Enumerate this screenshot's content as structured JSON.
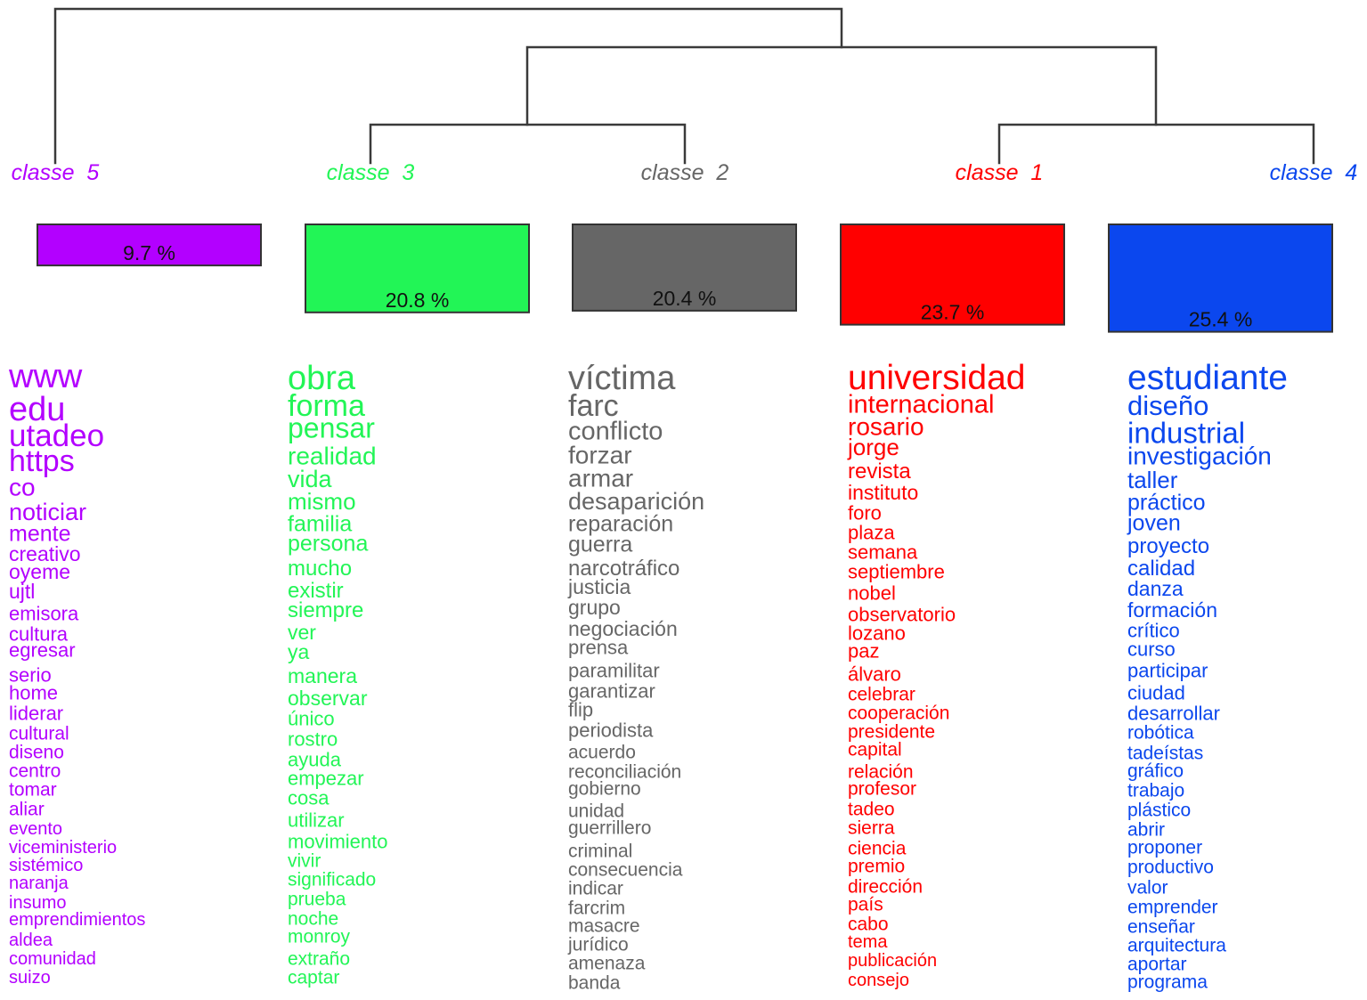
{
  "classes": [
    {
      "label": "classe  5",
      "percent": 9.7,
      "percent_label": "9.7 %",
      "color": "#b300ff",
      "words": [
        "www",
        "edu",
        "utadeo",
        "https",
        "co",
        "noticiar",
        "mente",
        "creativo",
        "oyeme",
        "ujtl",
        "emisora",
        "cultura",
        "egresar",
        "serio",
        "home",
        "liderar",
        "cultural",
        "diseno",
        "centro",
        "tomar",
        "aliar",
        "evento",
        "viceministerio",
        "sistémico",
        "naranja",
        "insumo",
        "emprendimientos",
        "aldea",
        "comunidad",
        "suizo"
      ]
    },
    {
      "label": "classe  3",
      "percent": 20.8,
      "percent_label": "20.8 %",
      "color": "#22f556",
      "words": [
        "obra",
        "forma",
        "pensar",
        "realidad",
        "vida",
        "mismo",
        "familia",
        "persona",
        "mucho",
        "existir",
        "siempre",
        "ver",
        "ya",
        "manera",
        "observar",
        "único",
        "rostro",
        "ayuda",
        "empezar",
        "cosa",
        "utilizar",
        "movimiento",
        "vivir",
        "significado",
        "prueba",
        "noche",
        "monroy",
        "extraño",
        "captar"
      ]
    },
    {
      "label": "classe  2",
      "percent": 20.4,
      "percent_label": "20.4 %",
      "color": "#666666",
      "words": [
        "víctima",
        "farc",
        "conflicto",
        "forzar",
        "armar",
        "desaparición",
        "reparación",
        "guerra",
        "narcotráfico",
        "justicia",
        "grupo",
        "negociación",
        "prensa",
        "paramilitar",
        "garantizar",
        "flip",
        "periodista",
        "acuerdo",
        "reconciliación",
        "gobierno",
        "unidad",
        "guerrillero",
        "criminal",
        "consecuencia",
        "indicar",
        "farcrim",
        "masacre",
        "jurídico",
        "amenaza",
        "banda"
      ]
    },
    {
      "label": "classe  1",
      "percent": 23.7,
      "percent_label": "23.7 %",
      "color": "#ff0000",
      "words": [
        "universidad",
        "internacional",
        "rosario",
        "jorge",
        "revista",
        "instituto",
        "foro",
        "plaza",
        "semana",
        "septiembre",
        "nobel",
        "observatorio",
        "lozano",
        "paz",
        "álvaro",
        "celebrar",
        "cooperación",
        "presidente",
        "capital",
        "relación",
        "profesor",
        "tadeo",
        "sierra",
        "ciencia",
        "premio",
        "dirección",
        "país",
        "cabo",
        "tema",
        "publicación",
        "consejo"
      ]
    },
    {
      "label": "classe  4",
      "percent": 25.4,
      "percent_label": "25.4 %",
      "color": "#0b47ee",
      "words": [
        "estudiante",
        "diseño",
        "industrial",
        "investigación",
        "taller",
        "práctico",
        "joven",
        "proyecto",
        "calidad",
        "danza",
        "formación",
        "crítico",
        "curso",
        "participar",
        "ciudad",
        "desarrollar",
        "robótica",
        "tadeístas",
        "gráfico",
        "trabajo",
        "plástico",
        "abrir",
        "proponer",
        "productivo",
        "valor",
        "emprender",
        "enseñar",
        "arquitectura",
        "aportar",
        "programa"
      ]
    }
  ]
}
